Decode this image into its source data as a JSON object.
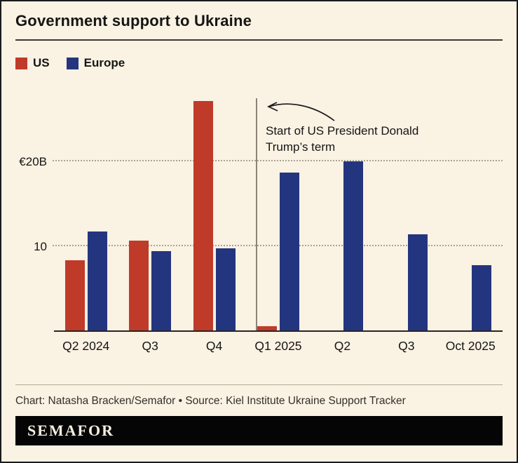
{
  "header": {
    "title": "Government support to Ukraine"
  },
  "legend": [
    {
      "label": "US",
      "color": "#c03a29"
    },
    {
      "label": "Europe",
      "color": "#24357f"
    }
  ],
  "colors": {
    "background": "#faf2e3",
    "us_red": "#c03a29",
    "europe_navy": "#24357f",
    "axis": "#262626"
  },
  "chart_data": {
    "type": "bar",
    "title": "Government support to Ukraine",
    "xlabel": "",
    "ylabel": "",
    "categories": [
      "Q2 2024",
      "Q3",
      "Q4",
      "Q1 2025",
      "Q2",
      "Q3",
      "Oct 2025"
    ],
    "series": [
      {
        "name": "US",
        "color": "#c03a29",
        "values": [
          8.3,
          10.6,
          27.2,
          0.5,
          0,
          0,
          0
        ]
      },
      {
        "name": "Europe",
        "color": "#24357f",
        "values": [
          11.7,
          9.4,
          9.7,
          18.7,
          20,
          11.4,
          7.7
        ]
      }
    ],
    "ylim": [
      0,
      27.5
    ],
    "yticks": [
      {
        "value": 20,
        "label": "€20B"
      },
      {
        "value": 10,
        "label": "10"
      }
    ],
    "grid": "dotted horizontal at labeled ticks",
    "legend_position": "top-left",
    "annotation": {
      "text": "Start of US President Donald Trump’s term",
      "x_position": "start of Q1 2025"
    }
  },
  "footer": {
    "credit": "Chart: Natasha Bracken/Semafor • Source: Kiel Institute Ukraine Support Tracker"
  },
  "logo": {
    "text": "SEMAFOR"
  }
}
